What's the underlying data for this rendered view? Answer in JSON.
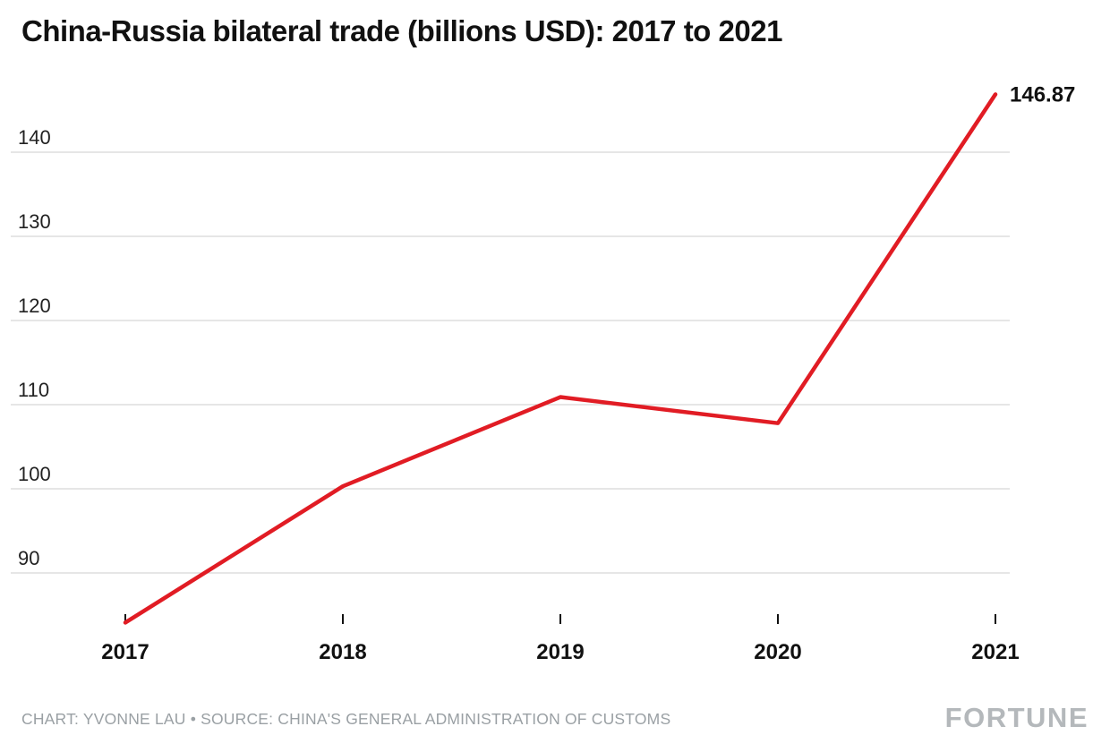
{
  "title": "China-Russia bilateral trade (billions USD): 2017 to 2021",
  "footer": {
    "credit": "CHART: YVONNE LAU • SOURCE: CHINA'S GENERAL ADMINISTRATION OF CUSTOMS",
    "brand": "FORTUNE"
  },
  "chart_data": {
    "type": "line",
    "title": "China-Russia bilateral trade (billions USD): 2017 to 2021",
    "x": [
      2017,
      2018,
      2019,
      2020,
      2021
    ],
    "values": [
      84.1,
      100.3,
      110.9,
      107.8,
      146.87
    ],
    "series_name": "China-Russia bilateral trade (billions USD)",
    "y_ticks": [
      90,
      100,
      110,
      120,
      130,
      140
    ],
    "ylim": [
      82,
      148
    ],
    "end_label": "146.87",
    "line_color": "#e11c24",
    "grid_color": "#cccccc",
    "xlabel": "",
    "ylabel": "",
    "grid": true,
    "legend": false
  }
}
